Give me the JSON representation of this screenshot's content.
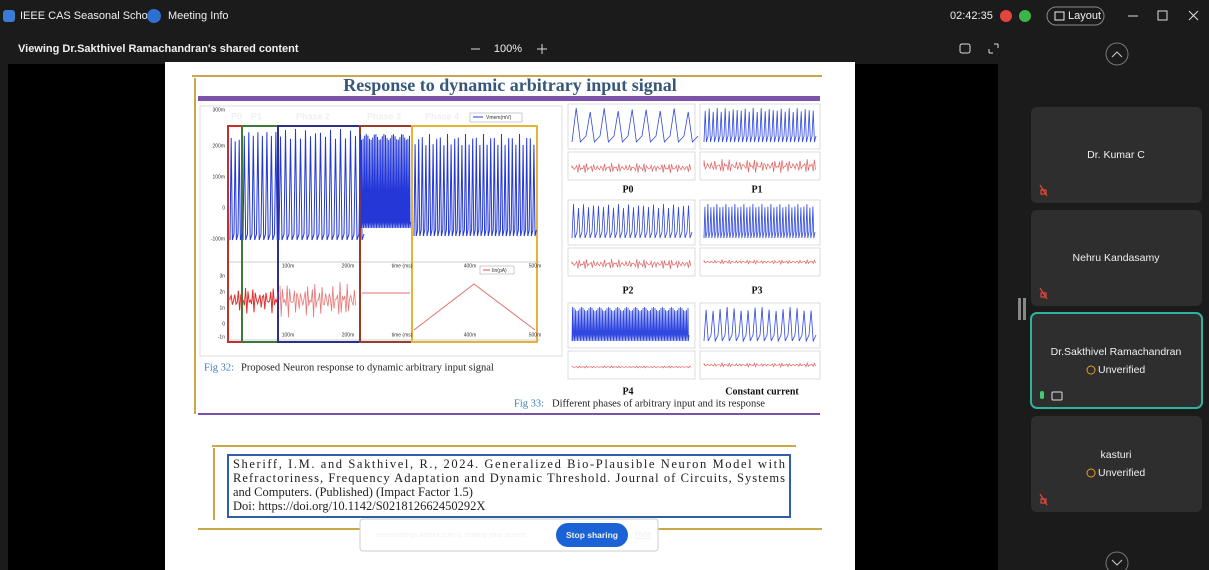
{
  "window": {
    "app_title": "IEEE CAS Seasonal School",
    "meeting_info": "Meeting Info",
    "timer": "02:42:35",
    "layout_button": "Layout"
  },
  "share_bar": {
    "viewing": "Viewing Dr.Sakthivel Ramachandran's shared content",
    "zoom": "100%"
  },
  "slide": {
    "title": "Response to dynamic arbitrary input signal",
    "figure32": {
      "phase_labels": [
        "P0",
        "P1",
        "Phase 2",
        "Phase 3",
        "Phase 4"
      ],
      "upper_legend": "Vmem(mV)",
      "lower_legend": "Iin(pA)",
      "upper_y_labels": [
        "300m",
        "200m",
        "100m",
        "0",
        "-100m"
      ],
      "lower_y_labels": [
        "3n",
        "2n",
        "1n",
        "0",
        "-1n"
      ],
      "upper_x_labels": [
        "100m",
        "200m",
        "time (ms)",
        "400m",
        "500m"
      ],
      "lower_x_labels": [
        "100m",
        "200m",
        "time (ms)",
        "400m",
        "500m"
      ],
      "caption_number": "Fig 32:",
      "caption": "Proposed Neuron response to dynamic arbitrary input signal"
    },
    "figure33": {
      "panel_labels": [
        "P0",
        "P1",
        "P2",
        "P3",
        "P4",
        "Constant current"
      ],
      "caption_number": "Fig 33:",
      "caption": "Different phases of arbitrary input and its response"
    },
    "reference": {
      "lines": [
        "Sheriff, I.M. and Sakthivel, R., 2024. Generalized Bio-Plausible Neuron Model with",
        "Refractoriness, Frequency Adaptation and Dynamic Threshold. Journal of Circuits, Systems",
        "and Computers. (Published) (Impact Factor 1.5)",
        "Doi: https://doi.org/10.1142/S021812662450292X"
      ]
    }
  },
  "share_banner": {
    "message": "ieeemeetings.webex.com is sharing your screen.",
    "stop_button": "Stop sharing",
    "hide_link": "Hide"
  },
  "participants": [
    {
      "name": "Dr. Kumar C"
    },
    {
      "name": "Nehru Kandasamy"
    },
    {
      "name": "Dr.Sakthivel Ramachandran",
      "status": "Unverified"
    },
    {
      "name": "kasturi",
      "status": "Unverified"
    }
  ]
}
